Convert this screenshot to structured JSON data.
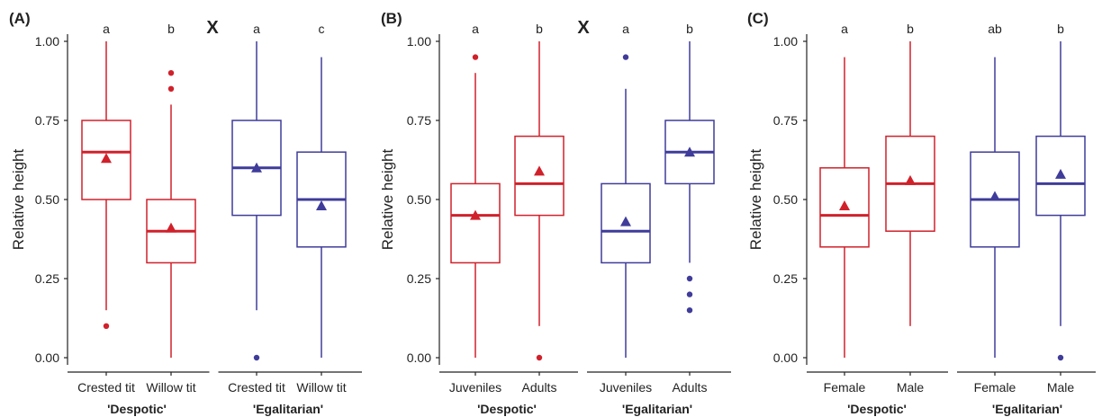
{
  "colors": {
    "despotic": "#d0212b",
    "egalitarian": "#3f3c9a",
    "axis": "#222222"
  },
  "chart_data": [
    {
      "type": "box",
      "panel_label": "(A)",
      "ylabel": "Relative height",
      "ylim": [
        0,
        1
      ],
      "yticks": [
        "0.00",
        "0.25",
        "0.50",
        "0.75",
        "1.00"
      ],
      "interaction_marker": "X",
      "groups": [
        {
          "name": "'Despotic'",
          "color_key": "despotic",
          "boxes": [
            {
              "category": "Crested tit",
              "letter": "a",
              "lower": 0.15,
              "q1": 0.5,
              "median": 0.65,
              "q3": 0.75,
              "upper": 1.0,
              "mean": 0.63,
              "outliers": [
                0.1
              ]
            },
            {
              "category": "Willow tit",
              "letter": "b",
              "lower": 0.0,
              "q1": 0.3,
              "median": 0.4,
              "q3": 0.5,
              "upper": 0.8,
              "mean": 0.41,
              "outliers": [
                0.85,
                0.9
              ]
            }
          ]
        },
        {
          "name": "'Egalitarian'",
          "color_key": "egalitarian",
          "boxes": [
            {
              "category": "Crested tit",
              "letter": "a",
              "lower": 0.15,
              "q1": 0.45,
              "median": 0.6,
              "q3": 0.75,
              "upper": 1.0,
              "mean": 0.6,
              "outliers": [
                0.0
              ]
            },
            {
              "category": "Willow tit",
              "letter": "c",
              "lower": 0.0,
              "q1": 0.35,
              "median": 0.5,
              "q3": 0.65,
              "upper": 0.95,
              "mean": 0.48,
              "outliers": []
            }
          ]
        }
      ]
    },
    {
      "type": "box",
      "panel_label": "(B)",
      "ylabel": "Relative height",
      "ylim": [
        0,
        1
      ],
      "yticks": [
        "0.00",
        "0.25",
        "0.50",
        "0.75",
        "1.00"
      ],
      "interaction_marker": "X",
      "groups": [
        {
          "name": "'Despotic'",
          "color_key": "despotic",
          "boxes": [
            {
              "category": "Juveniles",
              "letter": "a",
              "lower": 0.0,
              "q1": 0.3,
              "median": 0.45,
              "q3": 0.55,
              "upper": 0.9,
              "mean": 0.45,
              "outliers": [
                0.95
              ]
            },
            {
              "category": "Adults",
              "letter": "b",
              "lower": 0.1,
              "q1": 0.45,
              "median": 0.55,
              "q3": 0.7,
              "upper": 1.0,
              "mean": 0.59,
              "outliers": [
                0.0
              ]
            }
          ]
        },
        {
          "name": "'Egalitarian'",
          "color_key": "egalitarian",
          "boxes": [
            {
              "category": "Juveniles",
              "letter": "a",
              "lower": 0.0,
              "q1": 0.3,
              "median": 0.4,
              "q3": 0.55,
              "upper": 0.85,
              "mean": 0.43,
              "outliers": [
                0.95
              ]
            },
            {
              "category": "Adults",
              "letter": "b",
              "lower": 0.3,
              "q1": 0.55,
              "median": 0.65,
              "q3": 0.75,
              "upper": 1.0,
              "mean": 0.65,
              "outliers": [
                0.25,
                0.2,
                0.15
              ]
            }
          ]
        }
      ]
    },
    {
      "type": "box",
      "panel_label": "(C)",
      "ylabel": "Relative height",
      "ylim": [
        0,
        1
      ],
      "yticks": [
        "0.00",
        "0.25",
        "0.50",
        "0.75",
        "1.00"
      ],
      "interaction_marker": "",
      "groups": [
        {
          "name": "'Despotic'",
          "color_key": "despotic",
          "boxes": [
            {
              "category": "Female",
              "letter": "a",
              "lower": 0.0,
              "q1": 0.35,
              "median": 0.45,
              "q3": 0.6,
              "upper": 0.95,
              "mean": 0.48,
              "outliers": []
            },
            {
              "category": "Male",
              "letter": "b",
              "lower": 0.1,
              "q1": 0.4,
              "median": 0.55,
              "q3": 0.7,
              "upper": 1.0,
              "mean": 0.56,
              "outliers": []
            }
          ]
        },
        {
          "name": "'Egalitarian'",
          "color_key": "egalitarian",
          "boxes": [
            {
              "category": "Female",
              "letter": "ab",
              "lower": 0.0,
              "q1": 0.35,
              "median": 0.5,
              "q3": 0.65,
              "upper": 0.95,
              "mean": 0.51,
              "outliers": []
            },
            {
              "category": "Male",
              "letter": "b",
              "lower": 0.1,
              "q1": 0.45,
              "median": 0.55,
              "q3": 0.7,
              "upper": 1.0,
              "mean": 0.58,
              "outliers": [
                0.0
              ]
            }
          ]
        }
      ]
    }
  ]
}
